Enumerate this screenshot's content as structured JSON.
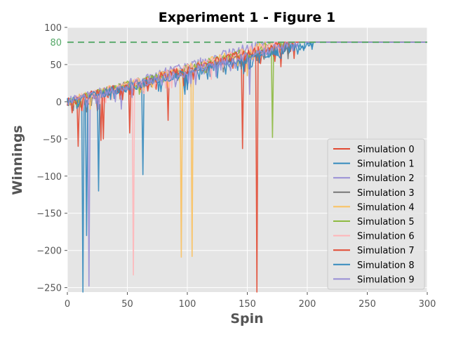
{
  "chart_data": {
    "type": "line",
    "title": "Experiment 1 - Figure 1",
    "xlabel": "Spin",
    "ylabel": "Winnings",
    "xlim": [
      0,
      300
    ],
    "ylim": [
      -256,
      100
    ],
    "grid": true,
    "legend_position": "bottom-right",
    "x_ticks": [
      0,
      50,
      100,
      150,
      200,
      250,
      300
    ],
    "y_ticks": [
      100,
      50,
      0,
      -50,
      -100,
      -150,
      -200,
      -250
    ],
    "reference_line": {
      "y": 80,
      "label": "80",
      "color": "#55a868",
      "style": "dashed"
    },
    "series": [
      {
        "name": "Simulation 0",
        "color": "#e24a33",
        "cap_spin": 190,
        "dips": [
          [
            9,
            -60
          ],
          [
            28,
            -52
          ],
          [
            52,
            -42
          ],
          [
            84,
            -25
          ],
          [
            146,
            -63
          ]
        ]
      },
      {
        "name": "Simulation 1",
        "color": "#348abd",
        "cap_spin": 207,
        "dips": [
          [
            13,
            -256
          ],
          [
            26,
            -120
          ],
          [
            63,
            -98
          ],
          [
            98,
            10
          ]
        ]
      },
      {
        "name": "Simulation 2",
        "color": "#988ed5",
        "cap_spin": 165,
        "dips": [
          [
            18,
            -248
          ],
          [
            45,
            -10
          ],
          [
            103,
            20
          ],
          [
            152,
            10
          ]
        ]
      },
      {
        "name": "Simulation 3",
        "color": "#777777",
        "cap_spin": 185,
        "dips": [
          [
            20,
            -5
          ],
          [
            70,
            20
          ],
          [
            130,
            40
          ]
        ]
      },
      {
        "name": "Simulation 4",
        "color": "#fbc15e",
        "cap_spin": 175,
        "dips": [
          [
            95,
            -209
          ],
          [
            104,
            -208
          ],
          [
            150,
            35
          ]
        ]
      },
      {
        "name": "Simulation 5",
        "color": "#8eba42",
        "cap_spin": 180,
        "dips": [
          [
            171,
            -48
          ],
          [
            60,
            10
          ]
        ]
      },
      {
        "name": "Simulation 6",
        "color": "#ffb5b8",
        "cap_spin": 178,
        "dips": [
          [
            55,
            -233
          ],
          [
            120,
            30
          ]
        ]
      },
      {
        "name": "Simulation 7",
        "color": "#e24a33",
        "cap_spin": 186,
        "dips": [
          [
            158,
            -256
          ],
          [
            30,
            -50
          ],
          [
            178,
            47
          ]
        ]
      },
      {
        "name": "Simulation 8",
        "color": "#348abd",
        "cap_spin": 205,
        "dips": [
          [
            16,
            -180
          ],
          [
            110,
            30
          ]
        ]
      },
      {
        "name": "Simulation 9",
        "color": "#988ed5",
        "cap_spin": 195,
        "dips": [
          [
            40,
            0
          ],
          [
            90,
            20
          ],
          [
            140,
            45
          ]
        ]
      }
    ]
  }
}
